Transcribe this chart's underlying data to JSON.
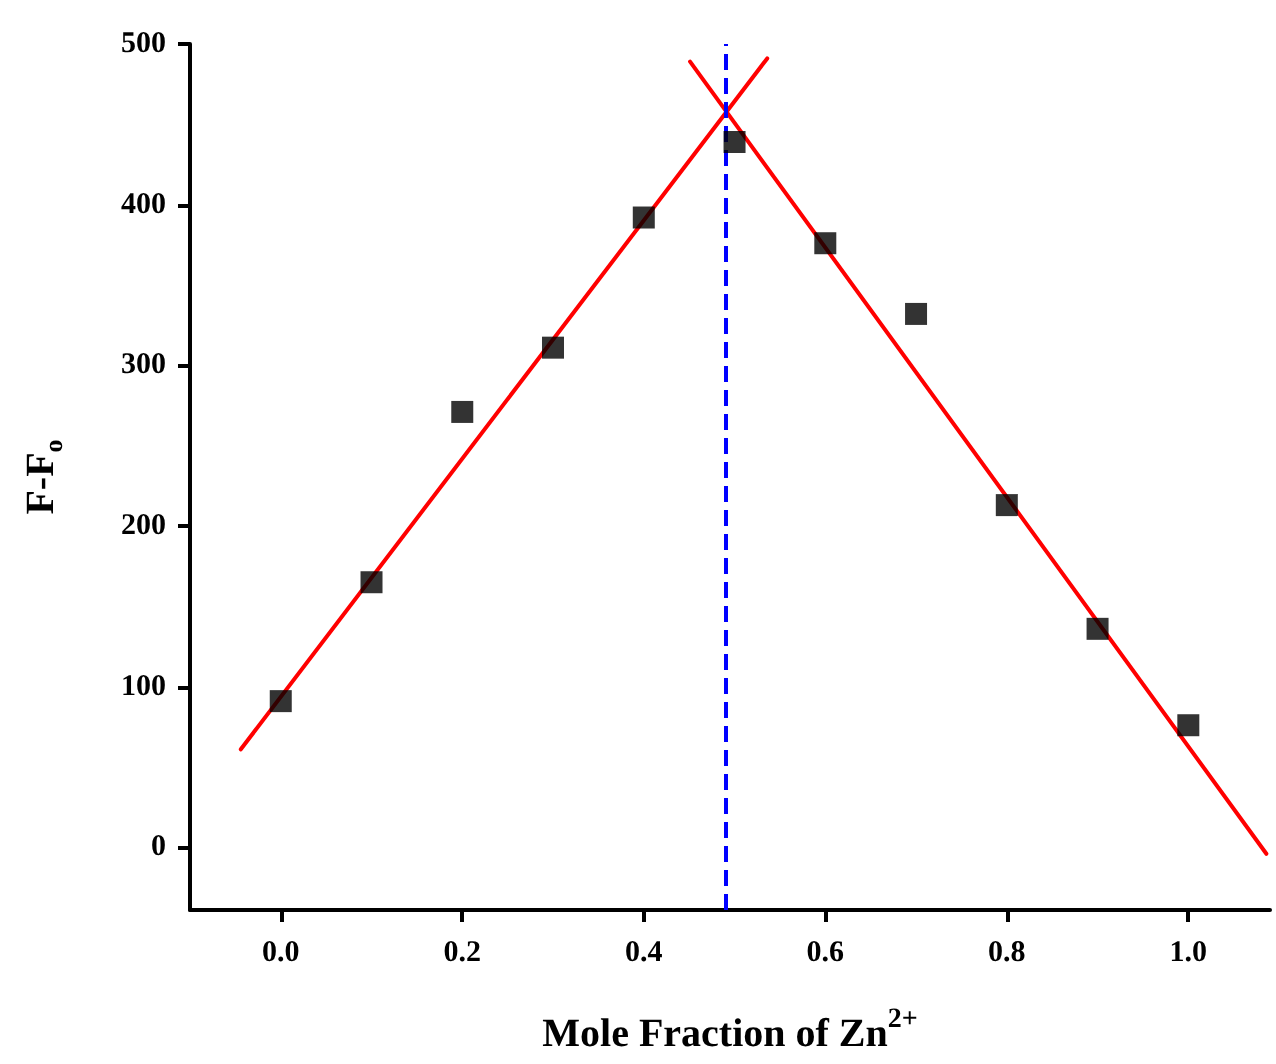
{
  "chart_data": {
    "type": "scatter",
    "xlabel": "Mole Fraction of Zn$^{2+}$",
    "ylabel": "F-F$_{o}$",
    "xlim": [
      -0.1,
      1.09
    ],
    "ylim": [
      -39,
      500
    ],
    "xticks": [
      {
        "value": 0,
        "label": "0.0"
      },
      {
        "value": 0.2,
        "label": "0.2"
      },
      {
        "value": 0.4,
        "label": "0.4"
      },
      {
        "value": 0.6,
        "label": "0.6"
      },
      {
        "value": 0.8,
        "label": "0.8"
      },
      {
        "value": 1,
        "label": "1.0"
      }
    ],
    "yticks": [
      0,
      100,
      200,
      300,
      400,
      500
    ],
    "grid": false,
    "series": [
      {
        "color": "#000000",
        "marker": "square",
        "x": [
          0,
          0.1,
          0.2,
          0.3,
          0.4,
          0.5,
          0.6,
          0.7,
          0.8,
          0.9,
          1.0
        ],
        "values": [
          91,
          165,
          271,
          311,
          392,
          439,
          376,
          332,
          213,
          136,
          76
        ]
      },
      {
        "type": "line",
        "color": "#ff0000",
        "marker": "none",
        "line_style": "solid",
        "x": [
          -0.044,
          0.536
        ],
        "values": [
          61,
          491
        ]
      },
      {
        "type": "line",
        "color": "#ff0000",
        "marker": "none",
        "line_style": "solid",
        "x": [
          0.451,
          1.086
        ],
        "values": [
          489,
          -4
        ]
      }
    ],
    "ref_lines": [
      {
        "axis": "x",
        "value": 0.492,
        "color": "#0000ff",
        "line_style": "dashed"
      }
    ]
  }
}
